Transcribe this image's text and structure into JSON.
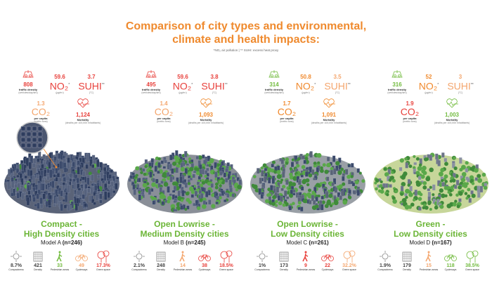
{
  "title_line1": "Comparison of city types and environmental,",
  "title_line2": "climate and health impacts:",
  "note": "*NO₂ air pollution  |  ** SUHI: excess heat proxy",
  "labels": {
    "traffic": "traffic density",
    "traffic_unit": "(vehicles/day/km)",
    "no2": "NO₂",
    "no2_mark": "*",
    "no2_unit": "(µg/m³)",
    "suhi": "SUHI",
    "suhi_mark": "**",
    "suhi_unit": "(°C)",
    "co2": "CO₂",
    "co2_lab": "per capita",
    "co2_unit": "(metric tons)",
    "mort": "Mortality",
    "mort_unit": "(deaths per 100,000 inhabitants)",
    "compact": "Compactness",
    "density": "Density",
    "ped": "Pedestrian areas",
    "cycle": "Cycleways",
    "green": "Green space"
  },
  "colors": {
    "red": "#e8413c",
    "orange": "#f08a2e",
    "light": "#f4a66e",
    "green": "#72bb3e",
    "gray": "#444444",
    "title": "#ef8a2e"
  },
  "models": [
    {
      "title1": "Compact -",
      "title2": "High Density cities",
      "model": "Model A",
      "n": "(n=246)",
      "traffic": "808",
      "traffic_c": "red",
      "no2": "59.6",
      "no2_c": "red",
      "suhi": "3.7",
      "suhi_c": "red",
      "co2": "1.3",
      "co2_c": "light",
      "mort": "1,124",
      "mort_c": "red",
      "compact": "8.7%",
      "density": "421",
      "ped": "33",
      "ped_c": "green",
      "cycle": "49",
      "cycle_c": "light",
      "green": "17.3%",
      "green_c": "red",
      "city": "compact"
    },
    {
      "title1": "Open Lowrise -",
      "title2": "Medium Density cities",
      "model": "Model B",
      "n": "(n=245)",
      "traffic": "495",
      "traffic_c": "red",
      "no2": "59.6",
      "no2_c": "red",
      "suhi": "3.8",
      "suhi_c": "red",
      "co2": "1.4",
      "co2_c": "light",
      "mort": "1,093",
      "mort_c": "orange",
      "compact": "2.1%",
      "density": "248",
      "ped": "14",
      "ped_c": "light",
      "cycle": "38",
      "cycle_c": "red",
      "green": "18.5%",
      "green_c": "red",
      "city": "medium"
    },
    {
      "title1": "Open Lowrise -",
      "title2": "Low Density cities",
      "model": "Model C",
      "n": "(n=261)",
      "traffic": "314",
      "traffic_c": "green",
      "no2": "50.8",
      "no2_c": "orange",
      "suhi": "3.5",
      "suhi_c": "light",
      "co2": "1.7",
      "co2_c": "orange",
      "mort": "1,091",
      "mort_c": "orange",
      "compact": "1%",
      "density": "173",
      "ped": "9",
      "ped_c": "red",
      "cycle": "22",
      "cycle_c": "red",
      "green": "32.2%",
      "green_c": "light",
      "city": "low"
    },
    {
      "title1": "Green -",
      "title2": "Low Density cities",
      "model": "Model D",
      "n": "(n=167)",
      "traffic": "316",
      "traffic_c": "green",
      "no2": "52",
      "no2_c": "orange",
      "suhi": "3",
      "suhi_c": "light",
      "co2": "1.9",
      "co2_c": "red",
      "mort": "1,003",
      "mort_c": "green",
      "compact": "1.9%",
      "density": "179",
      "ped": "15",
      "ped_c": "light",
      "cycle": "118",
      "cycle_c": "green",
      "green": "38.5%",
      "green_c": "green",
      "city": "green"
    }
  ]
}
